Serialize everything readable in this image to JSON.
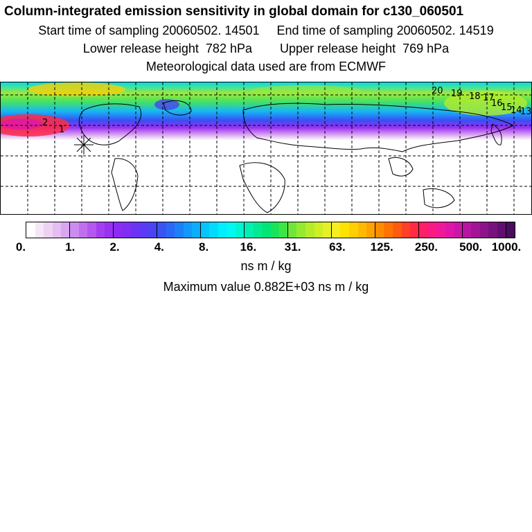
{
  "header": {
    "title": "Column-integrated emission sensitivity in global domain for c130_060501",
    "sampling_line": "Start time of sampling 20060502. 14501     End time of sampling 20060502. 14519",
    "release_line": "Lower release height  782 hPa        Upper release height  769 hPa",
    "met_line": "Meteorological data used are from ECMWF"
  },
  "map": {
    "contour_labels": [
      "20",
      "19",
      "18",
      "17",
      "16",
      "15",
      "14",
      "13",
      "2",
      "1"
    ],
    "release_marker": "star-marker"
  },
  "colorbar": {
    "tick_labels": [
      "0.",
      "1.",
      "2.",
      "4.",
      "8.",
      "16.",
      "31.",
      "63.",
      "125.",
      "250.",
      "500.",
      "1000."
    ],
    "colors": [
      "#ffffff",
      "#f6e6f6",
      "#eed2f4",
      "#e4bdf2",
      "#d9a6f1",
      "#cc8cef",
      "#c070ee",
      "#b457ee",
      "#a33ef0",
      "#9a30f2",
      "#8c2bf4",
      "#7d30f4",
      "#6d33f4",
      "#5c3af3",
      "#4a44f3",
      "#3a54f4",
      "#2a68f6",
      "#1c80f8",
      "#1298fa",
      "#0aaefc",
      "#04c4fd",
      "#00dbfe",
      "#00eefd",
      "#00f8f0",
      "#00f4d2",
      "#00efb3",
      "#00ea94",
      "#00e576",
      "#18e45a",
      "#40e545",
      "#6ee73a",
      "#94ea30",
      "#b4ec2a",
      "#ceee26",
      "#e6f024",
      "#f7ee22",
      "#ffe200",
      "#ffcf00",
      "#ffba00",
      "#ffa300",
      "#ff8c00",
      "#ff7400",
      "#ff5b10",
      "#ff4025",
      "#ff2b45",
      "#ff1f66",
      "#fb1a82",
      "#f0189a",
      "#e016a8",
      "#cc16a8",
      "#b614a2",
      "#a11496",
      "#8c138a",
      "#77117d",
      "#600f6e",
      "#4a0c5e"
    ],
    "units": "ns m / kg",
    "max_label": "Maximum value  0.882E+03 ns m / kg"
  }
}
